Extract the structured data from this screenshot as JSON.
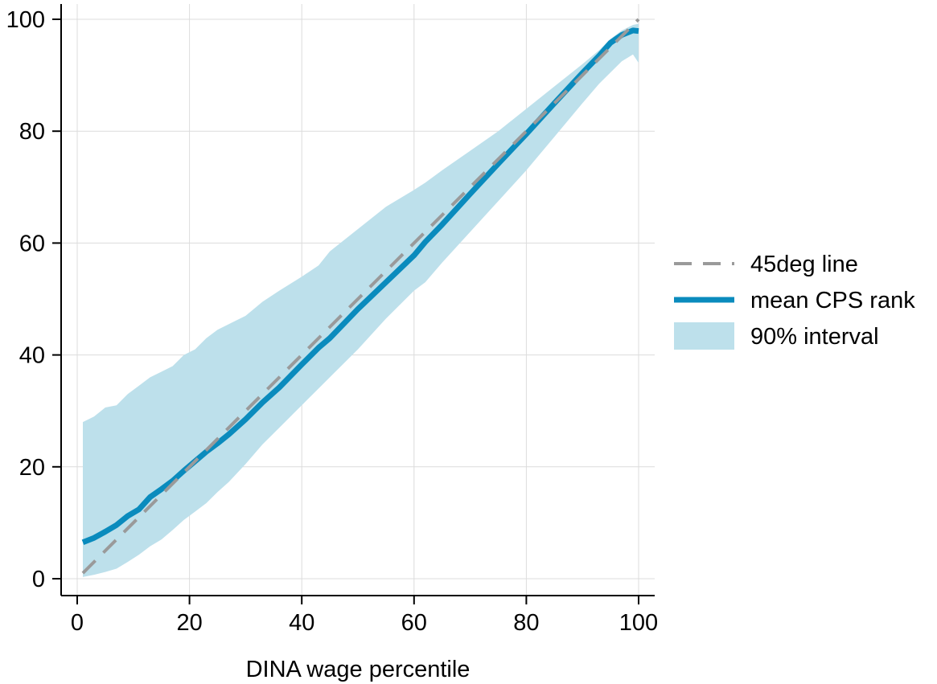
{
  "chart_data": {
    "type": "line",
    "title": "",
    "xlabel": "DINA wage percentile",
    "ylabel": "",
    "xlim": [
      0,
      100
    ],
    "ylim": [
      0,
      100
    ],
    "xticks": [
      0,
      20,
      40,
      60,
      80,
      100
    ],
    "yticks": [
      0,
      20,
      40,
      60,
      80,
      100
    ],
    "x_tick_labels": [
      "0",
      "20",
      "40",
      "60",
      "80",
      "100"
    ],
    "y_tick_labels": [
      "0",
      "20",
      "40",
      "60",
      "80",
      "100"
    ],
    "grid": true,
    "legend_position": "right",
    "colors": {
      "reference_line": "#9a9a9a",
      "mean_line": "#0a8bbd",
      "interval_fill": "#bde0eb",
      "grid": "#dcdcdc",
      "axis": "#000000"
    },
    "legend": [
      {
        "label": "45deg line",
        "style": "dashed",
        "series": "reference"
      },
      {
        "label": "mean CPS rank",
        "style": "solid",
        "series": "mean"
      },
      {
        "label": "90% interval",
        "style": "band",
        "series": "interval"
      }
    ],
    "reference_line": {
      "name": "45deg line",
      "x": [
        1,
        100
      ],
      "y": [
        1,
        100
      ]
    },
    "mean_series": {
      "name": "mean CPS rank",
      "x": [
        1,
        3,
        5,
        7,
        9,
        11,
        13,
        15,
        17,
        19,
        21,
        23,
        25,
        27,
        30,
        33,
        36,
        40,
        43,
        45,
        50,
        55,
        60,
        62,
        65,
        70,
        75,
        80,
        85,
        90,
        93,
        95,
        97,
        99,
        100
      ],
      "y": [
        6.5,
        7.3,
        8.4,
        9.6,
        11.2,
        12.4,
        14.6,
        16.0,
        17.5,
        19.3,
        21.0,
        22.7,
        24.2,
        25.8,
        28.5,
        31.5,
        34.2,
        38.3,
        41.3,
        43.0,
        48.2,
        53.0,
        57.8,
        60.2,
        63.3,
        68.8,
        74.2,
        79.5,
        85.0,
        90.4,
        93.5,
        95.8,
        97.2,
        98.0,
        97.9
      ]
    },
    "interval": {
      "name": "90% interval",
      "x": [
        1,
        3,
        5,
        7,
        9,
        11,
        13,
        15,
        17,
        19,
        21,
        23,
        25,
        27,
        30,
        33,
        36,
        40,
        43,
        45,
        50,
        55,
        60,
        62,
        65,
        70,
        75,
        80,
        85,
        90,
        93,
        95,
        97,
        99,
        100
      ],
      "upper": [
        28.0,
        29.0,
        30.6,
        31.0,
        33.0,
        34.5,
        36.0,
        37.0,
        38.0,
        40.0,
        41.0,
        43.0,
        44.5,
        45.5,
        47.0,
        49.5,
        51.5,
        54.0,
        56.0,
        58.5,
        62.5,
        66.5,
        69.5,
        70.8,
        73.0,
        76.5,
        80.0,
        84.0,
        88.0,
        92.0,
        94.5,
        96.5,
        98.0,
        99.0,
        99.2
      ],
      "lower": [
        0.3,
        0.7,
        1.2,
        1.8,
        3.0,
        4.3,
        5.8,
        7.0,
        8.7,
        10.5,
        12.0,
        13.5,
        15.5,
        17.3,
        20.5,
        24.0,
        27.0,
        31.0,
        34.0,
        36.0,
        41.0,
        46.5,
        51.5,
        53.0,
        56.5,
        62.0,
        67.5,
        73.0,
        79.0,
        85.0,
        88.5,
        90.5,
        92.5,
        93.7,
        92.2
      ]
    }
  }
}
